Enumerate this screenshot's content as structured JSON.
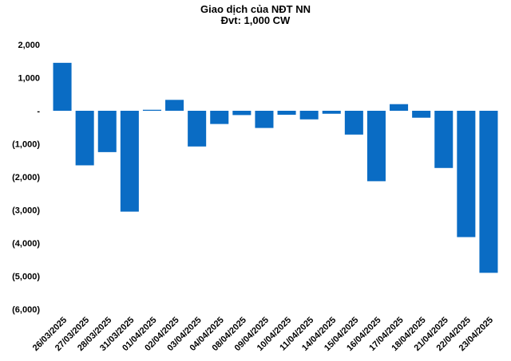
{
  "chart_data": {
    "type": "bar",
    "title": "Giao dịch của NĐT NN",
    "subtitle": "Đvt: 1,000 CW",
    "xlabel": "",
    "ylabel": "",
    "ylim": [
      -6000,
      2000
    ],
    "y_ticks": [
      2000,
      1000,
      0,
      -1000,
      -2000,
      -3000,
      -4000,
      -5000,
      -6000
    ],
    "y_tick_labels": [
      "2,000",
      "1,000",
      "-",
      "(1,000)",
      "(2,000)",
      "(3,000)",
      "(4,000)",
      "(5,000)",
      "(6,000)"
    ],
    "grid": false,
    "legend": "none",
    "bar_color": "#0a6cc4",
    "categories": [
      "26/03/2025",
      "27/03/2025",
      "28/03/2025",
      "31/03/2025",
      "01/04/2025",
      "02/04/2025",
      "03/04/2025",
      "04/04/2025",
      "08/04/2025",
      "09/04/2025",
      "10/04/2025",
      "11/04/2025",
      "14/04/2025",
      "15/04/2025",
      "16/04/2025",
      "17/04/2025",
      "18/04/2025",
      "21/04/2025",
      "22/04/2025",
      "23/04/2025"
    ],
    "values": [
      1450,
      -1650,
      -1250,
      -3050,
      30,
      330,
      -1080,
      -400,
      -130,
      -520,
      -120,
      -260,
      -90,
      -720,
      -2130,
      200,
      -210,
      -1730,
      -3820,
      -4900
    ]
  }
}
